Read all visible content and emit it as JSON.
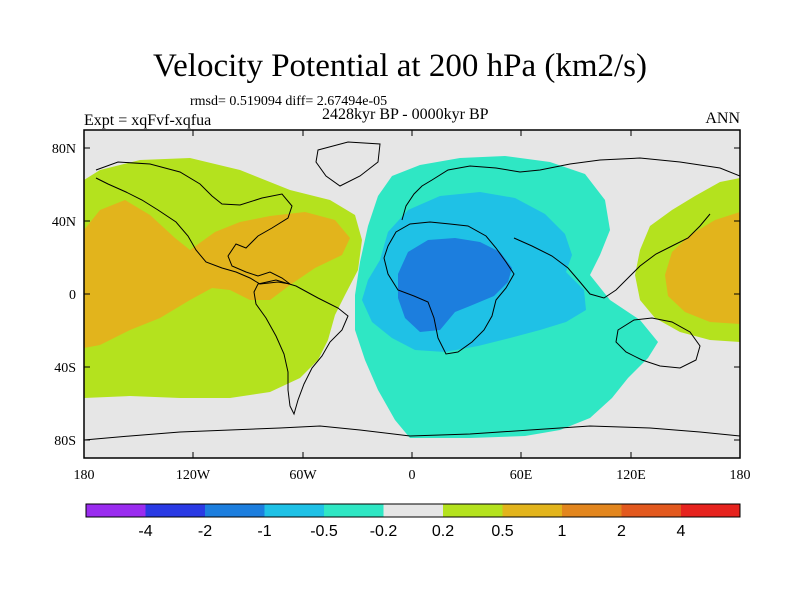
{
  "title": "Velocity Potential at 200 hPa (km2/s)",
  "stats": "rmsd= 0.519094 diff= 2.67494e-05",
  "experiment": "Expt = xqFvf-xqfua",
  "period": "2428kyr BP - 0000kyr BP",
  "season": "ANN",
  "map": {
    "land_color": "#e6e6e6",
    "lat_ticks": [
      "80N",
      "40N",
      "0",
      "40S",
      "80S"
    ],
    "lon_ticks": [
      "180",
      "120W",
      "60W",
      "0",
      "60E",
      "120E",
      "180"
    ]
  },
  "colorbar": {
    "colors": [
      "#9a2cef",
      "#2a3ae4",
      "#1c7ede",
      "#1fc1e6",
      "#2fe7c4",
      "#e6e6e6",
      "#b4e21e",
      "#e2b41c",
      "#e2861e",
      "#e2591e",
      "#e6231e"
    ],
    "labels": [
      "-4",
      "-2",
      "-1",
      "-0.5",
      "-0.2",
      "0.2",
      "0.5",
      "1",
      "2",
      "4"
    ]
  }
}
